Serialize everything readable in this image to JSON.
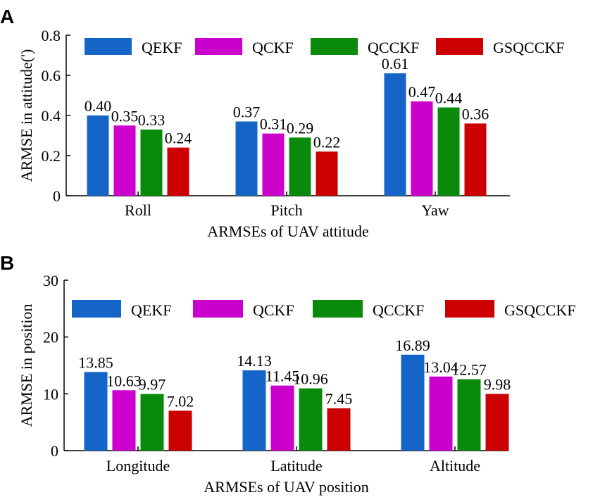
{
  "colors": {
    "QEKF": "#1565c8",
    "QCKF": "#cc00cc",
    "QCCKF": "#0a8a0a",
    "GSQCCKF": "#cc0000"
  },
  "chart_data": [
    {
      "panel": "A",
      "type": "bar",
      "title": "",
      "xlabel": "ARMSEs of UAV attitude",
      "ylabel": "ARMSE in attitude(')",
      "ylim": [
        0,
        0.8
      ],
      "yticks": [
        "0",
        "0.2",
        "0.4",
        "0.6",
        "0.8"
      ],
      "ytick_values": [
        0,
        0.2,
        0.4,
        0.6,
        0.8
      ],
      "categories": [
        "Roll",
        "Pitch",
        "Yaw"
      ],
      "legend": [
        "QEKF",
        "QCKF",
        "QCCKF",
        "GSQCCKF"
      ],
      "legend_position": "top",
      "series": [
        {
          "name": "QEKF",
          "values": [
            0.4,
            0.37,
            0.61
          ],
          "labels": [
            "0.40",
            "0.37",
            "0.61"
          ]
        },
        {
          "name": "QCKF",
          "values": [
            0.35,
            0.31,
            0.47
          ],
          "labels": [
            "0.35",
            "0.31",
            "0.47"
          ]
        },
        {
          "name": "QCCKF",
          "values": [
            0.33,
            0.29,
            0.44
          ],
          "labels": [
            "0.33",
            "0.29",
            "0.44"
          ]
        },
        {
          "name": "GSQCCKF",
          "values": [
            0.24,
            0.22,
            0.36
          ],
          "labels": [
            "0.24",
            "0.22",
            "0.36"
          ]
        }
      ]
    },
    {
      "panel": "B",
      "type": "bar",
      "title": "",
      "xlabel": "ARMSEs of UAV position",
      "ylabel": "ARMSE in position",
      "ylim": [
        0,
        30
      ],
      "yticks": [
        "0",
        "10",
        "20",
        "30"
      ],
      "ytick_values": [
        0,
        10,
        20,
        30
      ],
      "categories": [
        "Longitude",
        "Latitude",
        "Altitude"
      ],
      "legend": [
        "QEKF",
        "QCKF",
        "QCCKF",
        "GSQCCKF"
      ],
      "legend_position": "top",
      "series": [
        {
          "name": "QEKF",
          "values": [
            13.85,
            14.13,
            16.89
          ],
          "labels": [
            "13.85",
            "14.13",
            "16.89"
          ]
        },
        {
          "name": "QCKF",
          "values": [
            10.63,
            11.45,
            13.04
          ],
          "labels": [
            "10.63",
            "11.45",
            "13.04"
          ]
        },
        {
          "name": "QCCKF",
          "values": [
            9.97,
            10.96,
            12.57
          ],
          "labels": [
            "9.97",
            "10.96",
            "12.57"
          ]
        },
        {
          "name": "GSQCCKF",
          "values": [
            7.02,
            7.45,
            9.98
          ],
          "labels": [
            "7.02",
            "7.45",
            "9.98"
          ]
        }
      ]
    }
  ]
}
